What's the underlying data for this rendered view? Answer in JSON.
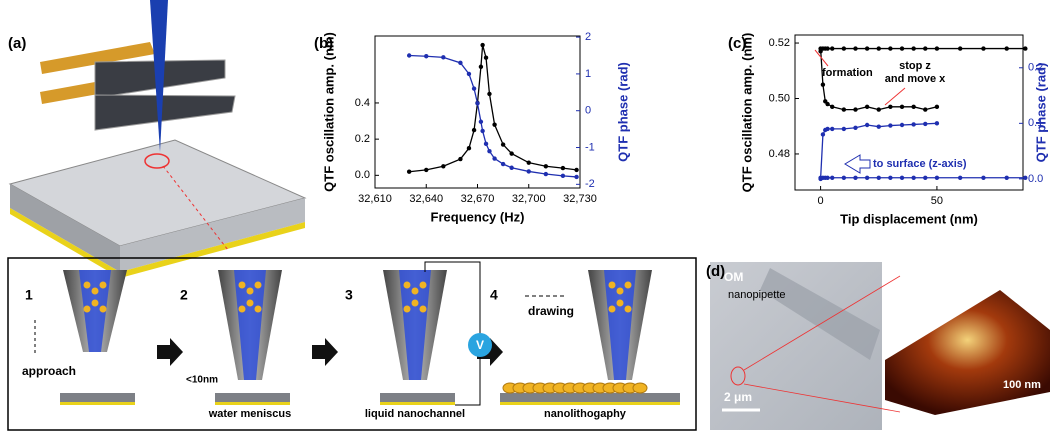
{
  "panel_labels": [
    "(a)",
    "(b)",
    "(c)",
    "(d)"
  ],
  "chart_data": [
    {
      "type": "line",
      "markers": true,
      "x_label": "Frequency (Hz)",
      "y_label": "QTF oscillation amp. (nm)",
      "y2_label": "QTF phase (rad)",
      "x": [
        32630,
        32640,
        32650,
        32660,
        32665,
        32668,
        32670,
        32672,
        32673,
        32675,
        32677,
        32680,
        32685,
        32690,
        32700,
        32710,
        32720,
        32728
      ],
      "series": [
        {
          "color": "#000000",
          "values": [
            0.02,
            0.03,
            0.05,
            0.09,
            0.15,
            0.25,
            0.4,
            0.6,
            0.72,
            0.65,
            0.45,
            0.28,
            0.17,
            0.12,
            0.07,
            0.05,
            0.04,
            0.03
          ]
        },
        {
          "color": "#1f2fb0",
          "axis": "y2",
          "values": [
            1.5,
            1.48,
            1.45,
            1.3,
            1.0,
            0.6,
            0.2,
            -0.3,
            -0.55,
            -0.9,
            -1.1,
            -1.3,
            -1.45,
            -1.55,
            -1.65,
            -1.72,
            -1.77,
            -1.8
          ]
        }
      ],
      "xlim": [
        32610,
        32730
      ],
      "xticks": [
        {
          "value": 32610,
          "label": "32,610"
        },
        {
          "value": 32640,
          "label": "32,640"
        },
        {
          "value": 32670,
          "label": "32,670"
        },
        {
          "value": 32700,
          "label": "32,700"
        },
        {
          "value": 32730,
          "label": "32,730"
        }
      ],
      "ylim": [
        -0.07,
        0.77
      ],
      "yticks": [
        {
          "value": 0,
          "label": "0.0"
        },
        0.2,
        0.4
      ],
      "y2lim": [
        -2.1,
        2.03
      ],
      "y2ticks": [
        -2,
        -1,
        0,
        1,
        2
      ]
    },
    {
      "type": "line",
      "markers": true,
      "x_label": "Tip displacement (nm)",
      "y_label": "QTF oscillation amp. (nm)",
      "y2_label": "QTF phase (rad)",
      "annotations": [
        "formation",
        "stop z",
        "and move x",
        "to surface (z-axis)"
      ],
      "x": [
        0,
        1,
        2,
        3,
        5,
        10,
        15,
        20,
        25,
        30,
        35,
        40,
        45,
        50,
        60,
        70,
        80,
        88
      ],
      "series": [
        {
          "color": "#000000",
          "values": [
            0.517,
            0.518,
            0.518,
            0.518,
            0.518,
            0.518,
            0.518,
            0.518,
            0.518,
            0.518,
            0.518,
            0.518,
            0.518,
            0.518,
            0.518,
            0.518,
            0.518,
            0.518
          ]
        },
        {
          "color": "#000000",
          "values": [
            0.518,
            0.505,
            0.499,
            0.498,
            0.497,
            0.496,
            0.496,
            0.497,
            0.496,
            0.497,
            0.497,
            0.497,
            0.496,
            0.497,
            null,
            null,
            null,
            null
          ]
        },
        {
          "color": "#1f2fb0",
          "axis": "y2",
          "values": [
            0.0,
            0.08,
            0.088,
            0.09,
            0.09,
            0.09,
            0.092,
            0.097,
            0.094,
            0.096,
            0.097,
            0.098,
            0.099,
            0.1,
            null,
            null,
            null,
            null
          ]
        },
        {
          "color": "#1f2fb0",
          "axis": "y2",
          "values": [
            0.002,
            0.002,
            0.002,
            0.002,
            0.002,
            0.002,
            0.002,
            0.002,
            0.002,
            0.002,
            0.002,
            0.002,
            0.002,
            0.002,
            0.002,
            0.002,
            0.002,
            0.002
          ]
        }
      ],
      "xlim": [
        -11,
        87
      ],
      "xticks": [
        0,
        50
      ],
      "ylim": [
        0.467,
        0.5229
      ],
      "yticks": [
        0.48,
        {
          "value": 0.5,
          "label": "0.50"
        },
        0.52
      ],
      "y2lim": [
        -0.02,
        0.259
      ],
      "y2ticks": [
        {
          "value": 0,
          "label": "0.0"
        },
        0.1,
        0.2
      ]
    }
  ],
  "steps": [
    {
      "number": "1",
      "texts": [
        "approach"
      ]
    },
    {
      "number": "2",
      "texts": [
        "<10nm",
        "water meniscus"
      ]
    },
    {
      "number": "3",
      "texts": [
        "liquid nanochannel",
        "V"
      ]
    },
    {
      "number": "4",
      "texts": [
        "drawing",
        "nanolithogaphy"
      ]
    }
  ],
  "micrograph": {
    "texts": [
      "OM",
      "nanopipette",
      "2 μm"
    ]
  },
  "afm": {
    "scale": "100 nm"
  }
}
